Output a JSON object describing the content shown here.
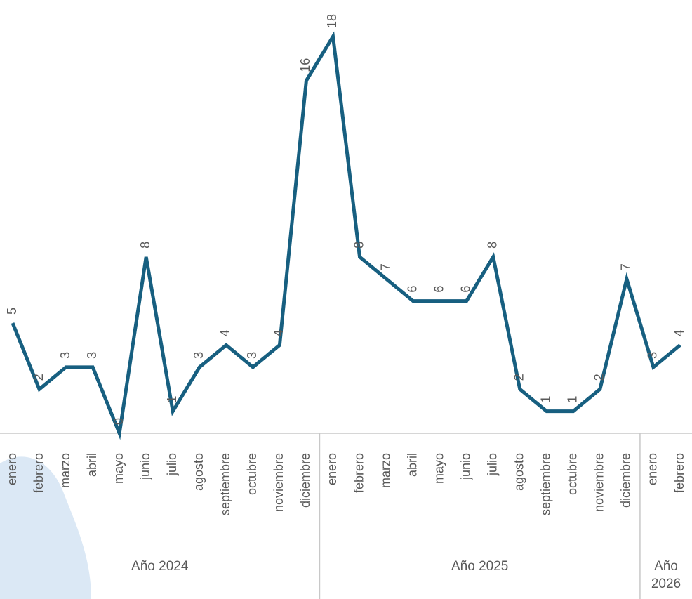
{
  "chart_data": {
    "type": "line",
    "groups": [
      {
        "label": "Año 2024",
        "categories": [
          "enero",
          "febrero",
          "marzo",
          "abril",
          "mayo",
          "junio",
          "julio",
          "agosto",
          "septiembre",
          "octubre",
          "noviembre",
          "diciembre"
        ]
      },
      {
        "label": "Año 2025",
        "categories": [
          "enero",
          "febrero",
          "marzo",
          "abril",
          "mayo",
          "junio",
          "julio",
          "agosto",
          "septiembre",
          "octubre",
          "noviembre",
          "diciembre"
        ]
      },
      {
        "label": "Año 2026",
        "categories": [
          "enero",
          "febrero"
        ]
      }
    ],
    "series": [
      {
        "color": "#175f80",
        "values": [
          5,
          2,
          3,
          3,
          0,
          8,
          1,
          3,
          4,
          3,
          4,
          16,
          18,
          8,
          7,
          6,
          6,
          6,
          8,
          2,
          1,
          1,
          2,
          7,
          3,
          4
        ]
      }
    ],
    "ylim": [
      0,
      18
    ]
  }
}
